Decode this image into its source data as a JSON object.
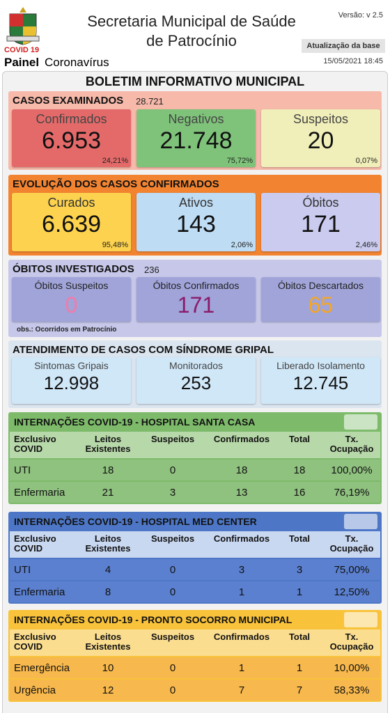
{
  "header": {
    "app_label": "COVID 19",
    "panel_bold": "Painel",
    "panel_rest": "Coronavírus",
    "title_line1": "Secretaria Municipal de Saúde",
    "title_line2": "de Patrocínio",
    "version": "Versão: v 2.5",
    "update_label": "Atualização da base",
    "update_time": "15/05/2021 18:45"
  },
  "bulletin_title": "BOLETIM INFORMATIVO MUNICIPAL",
  "sections": [
    {
      "title": "CASOS EXAMINADOS",
      "total": "28.721",
      "cards": [
        {
          "label": "Confirmados",
          "value": "6.953",
          "percent": "24,21%"
        },
        {
          "label": "Negativos",
          "value": "21.748",
          "percent": "75,72%"
        },
        {
          "label": "Suspeitos",
          "value": "20",
          "percent": "0,07%"
        }
      ]
    },
    {
      "title": "EVOLUÇÃO DOS CASOS CONFIRMADOS",
      "cards": [
        {
          "label": "Curados",
          "value": "6.639",
          "percent": "95,48%"
        },
        {
          "label": "Ativos",
          "value": "143",
          "percent": "2,06%"
        },
        {
          "label": "Óbitos",
          "value": "171",
          "percent": "2,46%"
        }
      ]
    },
    {
      "title": "ÓBITOS INVESTIGADOS",
      "total": "236",
      "note": "obs.: Ocorridos em Patrocínio",
      "cards": [
        {
          "label": "Óbitos Suspeitos",
          "value": "0"
        },
        {
          "label": "Óbitos Confirmados",
          "value": "171"
        },
        {
          "label": "Óbitos Descartados",
          "value": "65"
        }
      ]
    },
    {
      "title": "ATENDIMENTO DE CASOS COM SÍNDROME GRIPAL",
      "cards": [
        {
          "label": "Sintomas Gripais",
          "value": "12.998"
        },
        {
          "label": "Monitorados",
          "value": "253"
        },
        {
          "label": "Liberado Isolamento",
          "value": "12.745"
        }
      ]
    }
  ],
  "tables": [
    {
      "title": "INTERNAÇÕES COVID-19 - HOSPITAL SANTA CASA",
      "columns": [
        "Exclusivo\nCOVID",
        "Leitos\nExistentes",
        "Suspeitos",
        "Confirmados",
        "Total",
        "Tx.\nOcupação"
      ],
      "rows": [
        [
          "UTI",
          "18",
          "0",
          "18",
          "18",
          "100,00%"
        ],
        [
          "Enfermaria",
          "21",
          "3",
          "13",
          "16",
          "76,19%"
        ]
      ]
    },
    {
      "title": "INTERNAÇÕES COVID-19 - HOSPITAL MED CENTER",
      "columns": [
        "Exclusivo\nCOVID",
        "Leitos\nExistentes",
        "Suspeitos",
        "Confirmados",
        "Total",
        "Tx.\nOcupação"
      ],
      "rows": [
        [
          "UTI",
          "4",
          "0",
          "3",
          "3",
          "75,00%"
        ],
        [
          "Enfermaria",
          "8",
          "0",
          "1",
          "1",
          "12,50%"
        ]
      ]
    },
    {
      "title": "INTERNAÇÕES COVID-19 - PRONTO SOCORRO MUNICIPAL",
      "columns": [
        "Exclusivo\nCOVID",
        "Leitos\nExistentes",
        "Suspeitos",
        "Confirmados",
        "Total",
        "Tx.\nOcupação"
      ],
      "rows": [
        [
          "Emergência",
          "10",
          "0",
          "1",
          "1",
          "10,00%"
        ],
        [
          "Urgência",
          "12",
          "0",
          "7",
          "7",
          "58,33%"
        ]
      ]
    }
  ]
}
